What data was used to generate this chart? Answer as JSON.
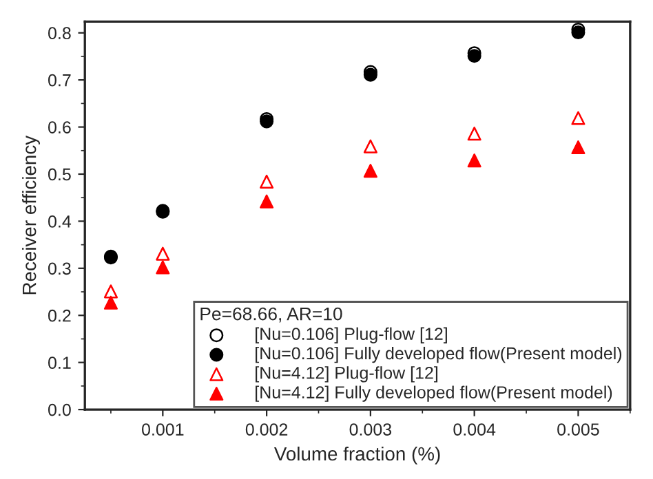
{
  "chart_data": {
    "type": "scatter",
    "xlabel": "Volume fraction (%)",
    "ylabel": "Receiver efficiency",
    "legend_title": "Pe=68.66, AR=10",
    "legend": "bottom right",
    "x": [
      0.0005,
      0.001,
      0.002,
      0.003,
      0.004,
      0.005
    ],
    "xlim": [
      0.00025,
      0.0055
    ],
    "xticks": [
      0.001,
      0.002,
      0.003,
      0.004,
      0.005
    ],
    "ylim": [
      0,
      0.824
    ],
    "yticks": [
      {
        "value": 0,
        "label": "0.0"
      },
      0.1,
      0.2,
      0.3,
      0.4,
      0.5,
      0.6,
      0.7,
      0.8
    ],
    "grid": false,
    "series": [
      {
        "name": "[Nu=0.106] Plug-flow [12]",
        "color": "#000000",
        "marker": "circle-open",
        "values": [
          0.325,
          0.422,
          0.617,
          0.717,
          0.757,
          0.807
        ]
      },
      {
        "name": "[Nu=0.106] Fully developed flow(Present model)",
        "color": "#000000",
        "marker": "circle",
        "values": [
          0.323,
          0.42,
          0.612,
          0.711,
          0.751,
          0.801
        ]
      },
      {
        "name": "[Nu=4.12] Plug-flow [12]",
        "color": "#ff0000",
        "marker": "triangle-open",
        "values": [
          0.251,
          0.331,
          0.484,
          0.559,
          0.586,
          0.619
        ]
      },
      {
        "name": "[Nu=4.12] Fully developed flow(Present model)",
        "color": "#ff0000",
        "marker": "triangle",
        "values": [
          0.227,
          0.302,
          0.442,
          0.507,
          0.529,
          0.557
        ]
      }
    ]
  }
}
